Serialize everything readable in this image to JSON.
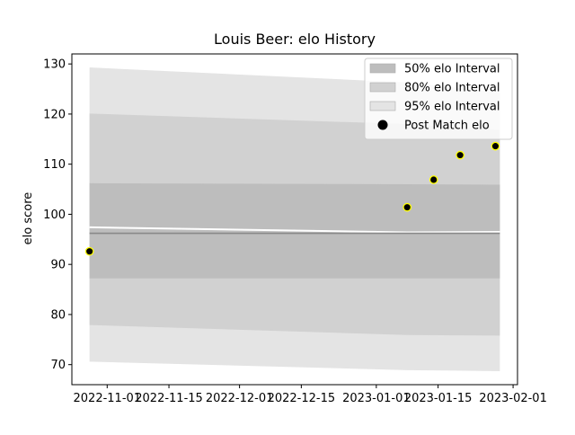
{
  "chart_data": {
    "type": "line",
    "title": "Louis Beer: elo History",
    "xlabel": "",
    "ylabel": "elo score",
    "xlim": [
      "2022-10-24",
      "2023-02-02"
    ],
    "ylim": [
      66,
      132
    ],
    "x_ticks": [
      "2022-11-01",
      "2022-11-15",
      "2022-12-01",
      "2022-12-15",
      "2023-01-01",
      "2023-01-15",
      "2023-02-01"
    ],
    "y_ticks": [
      70,
      80,
      90,
      100,
      110,
      120,
      130
    ],
    "grid": false,
    "legend_position": "top-right",
    "bands": [
      {
        "name": "95% elo Interval",
        "color": "#e4e4e4",
        "x": [
          "2022-10-28",
          "2023-01-08",
          "2023-01-29"
        ],
        "lower": [
          70.6,
          68.9,
          68.7
        ],
        "upper": [
          129.3,
          126.3,
          124.3
        ]
      },
      {
        "name": "80% elo Interval",
        "color": "#d1d1d1",
        "x": [
          "2022-10-28",
          "2023-01-08",
          "2023-01-29"
        ],
        "lower": [
          77.9,
          75.9,
          75.8
        ],
        "upper": [
          120.1,
          118.0,
          116.8
        ]
      },
      {
        "name": "50% elo Interval",
        "color": "#bdbdbd",
        "x": [
          "2022-10-28",
          "2023-01-08",
          "2023-01-29"
        ],
        "lower": [
          87.2,
          87.2,
          87.2
        ],
        "upper": [
          106.2,
          106.0,
          105.9
        ]
      }
    ],
    "lines": [
      {
        "color": "#ffffff",
        "x": [
          "2022-10-28",
          "2023-01-08",
          "2023-01-29"
        ],
        "values": [
          97.4,
          96.4,
          96.5
        ]
      },
      {
        "color": "#888888",
        "x": [
          "2022-10-28",
          "2023-01-29"
        ],
        "values": [
          96.2,
          96.2
        ]
      }
    ],
    "points": {
      "name": "Post Match elo",
      "color": "#000000",
      "edge_color": "#ffff00",
      "x": [
        "2022-10-28",
        "2023-01-08",
        "2023-01-14",
        "2023-01-20",
        "2023-01-28"
      ],
      "values": [
        92.6,
        101.4,
        106.9,
        111.8,
        113.6
      ]
    }
  }
}
